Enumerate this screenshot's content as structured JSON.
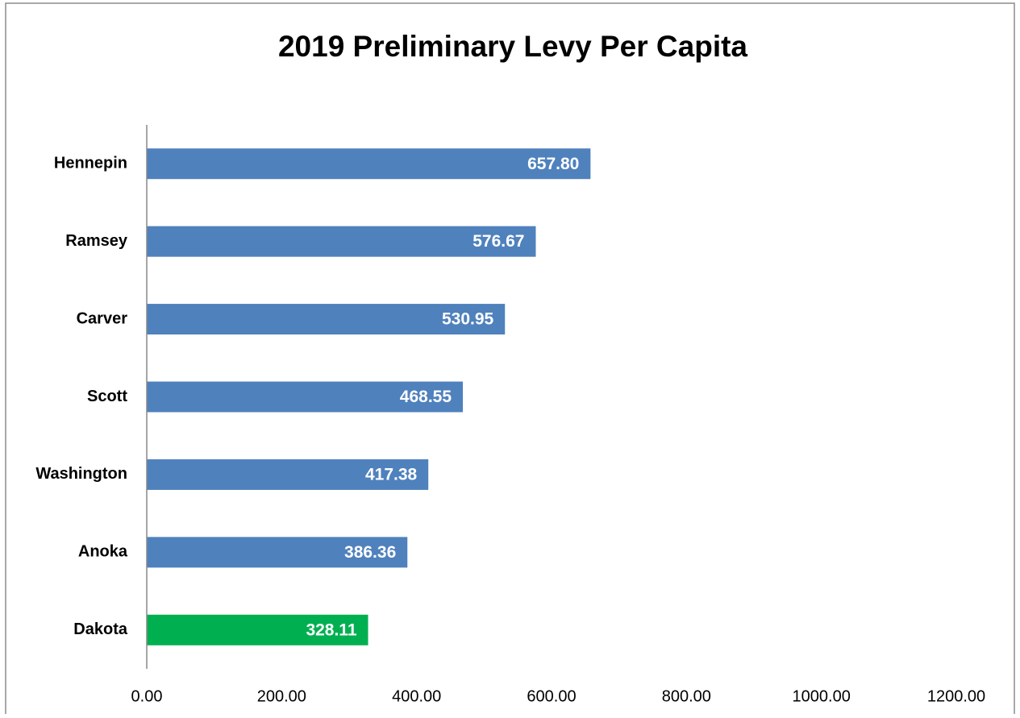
{
  "chart_data": {
    "type": "barh",
    "title": "2019 Preliminary Levy Per Capita",
    "categories": [
      "Hennepin",
      "Ramsey",
      "Carver",
      "Scott",
      "Washington",
      "Anoka",
      "Dakota"
    ],
    "values": [
      657.8,
      576.67,
      530.95,
      468.55,
      417.38,
      386.36,
      328.11
    ],
    "value_labels": [
      "657.80",
      "576.67",
      "530.95",
      "468.55",
      "417.38",
      "386.36",
      "328.11"
    ],
    "colors": [
      "#4f81bd",
      "#4f81bd",
      "#4f81bd",
      "#4f81bd",
      "#4f81bd",
      "#4f81bd",
      "#00b050"
    ],
    "xlim": [
      0,
      1200
    ],
    "xticks": [
      {
        "value": 0,
        "label": "0.00"
      },
      {
        "value": 200,
        "label": "200.00"
      },
      {
        "value": 400,
        "label": "400.00"
      },
      {
        "value": 600,
        "label": "600.00"
      },
      {
        "value": 800,
        "label": "800.00"
      },
      {
        "value": 1000,
        "label": "1000.00"
      },
      {
        "value": 1200,
        "label": "1200.00"
      }
    ],
    "grid": false
  }
}
